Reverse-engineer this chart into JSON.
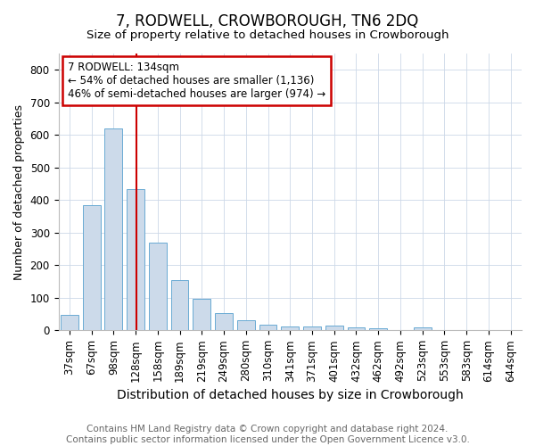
{
  "title": "7, RODWELL, CROWBOROUGH, TN6 2DQ",
  "subtitle": "Size of property relative to detached houses in Crowborough",
  "xlabel": "Distribution of detached houses by size in Crowborough",
  "ylabel": "Number of detached properties",
  "categories": [
    "37sqm",
    "67sqm",
    "98sqm",
    "128sqm",
    "158sqm",
    "189sqm",
    "219sqm",
    "249sqm",
    "280sqm",
    "310sqm",
    "341sqm",
    "371sqm",
    "401sqm",
    "432sqm",
    "462sqm",
    "492sqm",
    "523sqm",
    "553sqm",
    "583sqm",
    "614sqm",
    "644sqm"
  ],
  "values": [
    47,
    383,
    620,
    435,
    268,
    155,
    97,
    52,
    30,
    17,
    12,
    11,
    14,
    8,
    5,
    0,
    8,
    0,
    0,
    0,
    0
  ],
  "bar_color": "#ccdaea",
  "bar_edge_color": "#6aaad4",
  "annotation_text": "7 RODWELL: 134sqm\n← 54% of detached houses are smaller (1,136)\n46% of semi-detached houses are larger (974) →",
  "annotation_box_color": "#ffffff",
  "annotation_box_edge": "#cc0000",
  "vline_x_index": 3.05,
  "vline_color": "#cc0000",
  "footer_line1": "Contains HM Land Registry data © Crown copyright and database right 2024.",
  "footer_line2": "Contains public sector information licensed under the Open Government Licence v3.0.",
  "ylim": [
    0,
    850
  ],
  "title_fontsize": 12,
  "subtitle_fontsize": 9.5,
  "xlabel_fontsize": 10,
  "ylabel_fontsize": 9,
  "tick_fontsize": 8.5,
  "footer_fontsize": 7.5,
  "annot_fontsize": 8.5
}
